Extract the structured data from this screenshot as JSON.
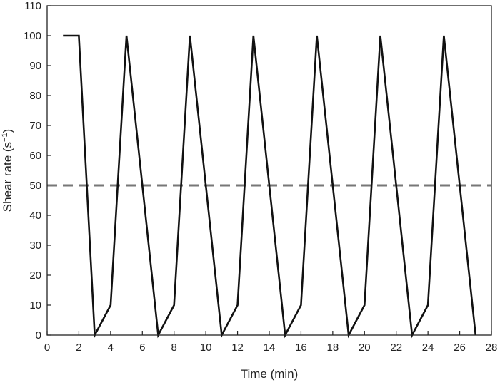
{
  "chart_data": {
    "type": "line",
    "title": "",
    "xlabel": "Time (min)",
    "ylabel": "Shear rate (s",
    "ylabel_sup": "−1",
    "ylabel_tail": ")",
    "xlim": [
      0,
      28
    ],
    "ylim": [
      0,
      110
    ],
    "xticks": [
      0,
      2,
      4,
      6,
      8,
      10,
      12,
      14,
      16,
      18,
      20,
      22,
      24,
      26,
      28
    ],
    "yticks": [
      0,
      10,
      20,
      30,
      40,
      50,
      60,
      70,
      80,
      90,
      100,
      110
    ],
    "grid": false,
    "legend": "none",
    "colors": {
      "series": "#111111",
      "reference": "#777777"
    },
    "series": [
      {
        "x": [
          1,
          2,
          3,
          4,
          5,
          7,
          8,
          9,
          11,
          12,
          13,
          15,
          16,
          17,
          19,
          20,
          21,
          23,
          24,
          25,
          27
        ],
        "y": [
          100,
          100,
          0,
          10,
          100,
          0,
          10,
          100,
          0,
          10,
          100,
          0,
          10,
          100,
          0,
          10,
          100,
          0,
          10,
          100,
          0
        ]
      }
    ],
    "reference_lines": [
      {
        "axis": "y",
        "value": 50,
        "style": "dashed"
      }
    ]
  }
}
